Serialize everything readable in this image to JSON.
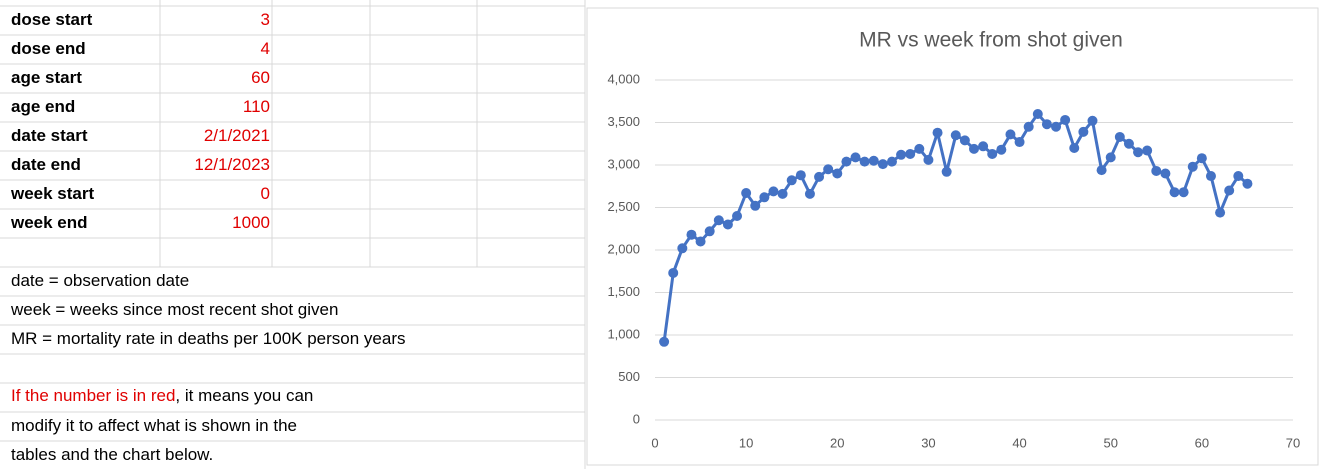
{
  "sheet": {
    "params": [
      {
        "label": "dose start",
        "value": 3
      },
      {
        "label": "dose end",
        "value": 4
      },
      {
        "label": "age start",
        "value": 60
      },
      {
        "label": "age end",
        "value": 110
      },
      {
        "label": "date start",
        "value": "2/1/2021"
      },
      {
        "label": "date end",
        "value": "12/1/2023"
      },
      {
        "label": "week start",
        "value": 0
      },
      {
        "label": "week end",
        "value": 1000
      }
    ],
    "notes": [
      "date = observation date",
      "week = weeks since most recent shot given",
      "MR = mortality rate in deaths per 100K person years"
    ],
    "red_note": {
      "red": "If the number is in red",
      "rest": ", it means you can"
    },
    "more_notes": [
      "modify it to affect what is shown in the",
      "tables and the chart below."
    ]
  },
  "chart_data": {
    "type": "line",
    "title": "MR vs week from shot given",
    "color": "#4472c4",
    "x": [
      1,
      2,
      3,
      4,
      5,
      6,
      7,
      8,
      9,
      10,
      11,
      12,
      13,
      14,
      15,
      16,
      17,
      18,
      19,
      20,
      21,
      22,
      23,
      24,
      25,
      26,
      27,
      28,
      29,
      30,
      31,
      32,
      33,
      34,
      35,
      36,
      37,
      38,
      39,
      40,
      41,
      42,
      43,
      44,
      45,
      46,
      47,
      48,
      49,
      50,
      51,
      52,
      53,
      54,
      55,
      56,
      57,
      58,
      59,
      60,
      61,
      62,
      63,
      64,
      65
    ],
    "values": [
      920,
      1730,
      2020,
      2180,
      2100,
      2220,
      2350,
      2300,
      2400,
      2670,
      2520,
      2620,
      2690,
      2660,
      2820,
      2880,
      2660,
      2860,
      2950,
      2900,
      3040,
      3090,
      3040,
      3050,
      3010,
      3040,
      3120,
      3130,
      3190,
      3060,
      3380,
      2920,
      3350,
      3290,
      3190,
      3220,
      3130,
      3180,
      3360,
      3270,
      3450,
      3600,
      3480,
      3450,
      3530,
      3200,
      3390,
      3520,
      2940,
      3090,
      3330,
      3250,
      3150,
      3170,
      2930,
      2900,
      2680,
      2680,
      2980,
      3080,
      2870,
      2440,
      2700,
      2870,
      2780
    ],
    "xlim": [
      0,
      70
    ],
    "xticks": [
      0,
      10,
      20,
      30,
      40,
      50,
      60,
      70
    ],
    "ylim": [
      0,
      4000
    ],
    "yticks": [
      0,
      500,
      {
        "value": 1000,
        "label": "1,000"
      },
      {
        "value": 1500,
        "label": "1,500"
      },
      {
        "value": 2000,
        "label": "2,000"
      },
      {
        "value": 2500,
        "label": "2,500"
      },
      {
        "value": 3000,
        "label": "3,000"
      },
      {
        "value": 3500,
        "label": "3,500"
      },
      {
        "value": 4000,
        "label": "4,000"
      }
    ],
    "grid": true
  }
}
